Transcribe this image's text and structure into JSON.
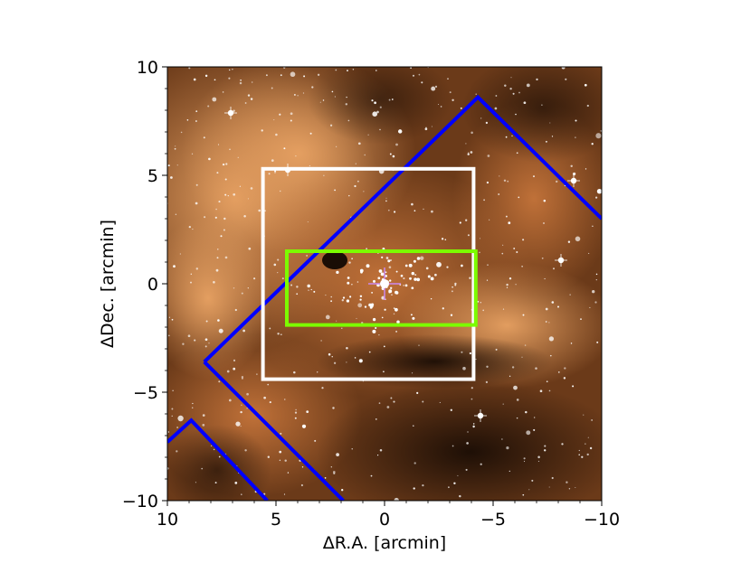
{
  "chart_data": {
    "type": "image",
    "xlabel": "ΔR.A. [arcmin]",
    "ylabel": "ΔDec. [arcmin]",
    "xlim": [
      10,
      -10
    ],
    "ylim": [
      -10,
      10
    ],
    "x_ticks": [
      10,
      5,
      0,
      -5,
      -10
    ],
    "x_tick_labels": [
      "10",
      "5",
      "0",
      "−5",
      "−10"
    ],
    "y_ticks": [
      -10,
      -5,
      0,
      5,
      10
    ],
    "y_tick_labels": [
      "−10",
      "−5",
      "0",
      "5",
      "10"
    ],
    "grid": false,
    "background": "star-field-nebula",
    "footprints": [
      {
        "shape": "polyline",
        "color": "#0000ff",
        "points": [
          [
            8.3,
            -3.6
          ],
          [
            -4.3,
            8.6
          ],
          [
            -10,
            3
          ]
        ]
      },
      {
        "shape": "polyline",
        "color": "#0000ff",
        "points": [
          [
            8.3,
            -3.6
          ],
          [
            1.9,
            -10
          ]
        ]
      },
      {
        "shape": "polyline",
        "color": "#0000ff",
        "points": [
          [
            10,
            -7.3
          ],
          [
            8.9,
            -6.3
          ],
          [
            5.4,
            -10
          ]
        ]
      },
      {
        "shape": "rectangle",
        "color": "#ffffff",
        "x": [
          5.6,
          -4.1
        ],
        "y": [
          -4.4,
          5.3
        ]
      },
      {
        "shape": "rectangle",
        "color": "#7cfc00",
        "x": [
          4.5,
          -4.2
        ],
        "y": [
          -1.9,
          1.5
        ]
      }
    ],
    "center_marker": {
      "x": 0,
      "y": 0,
      "color": "#cc88ee"
    }
  }
}
